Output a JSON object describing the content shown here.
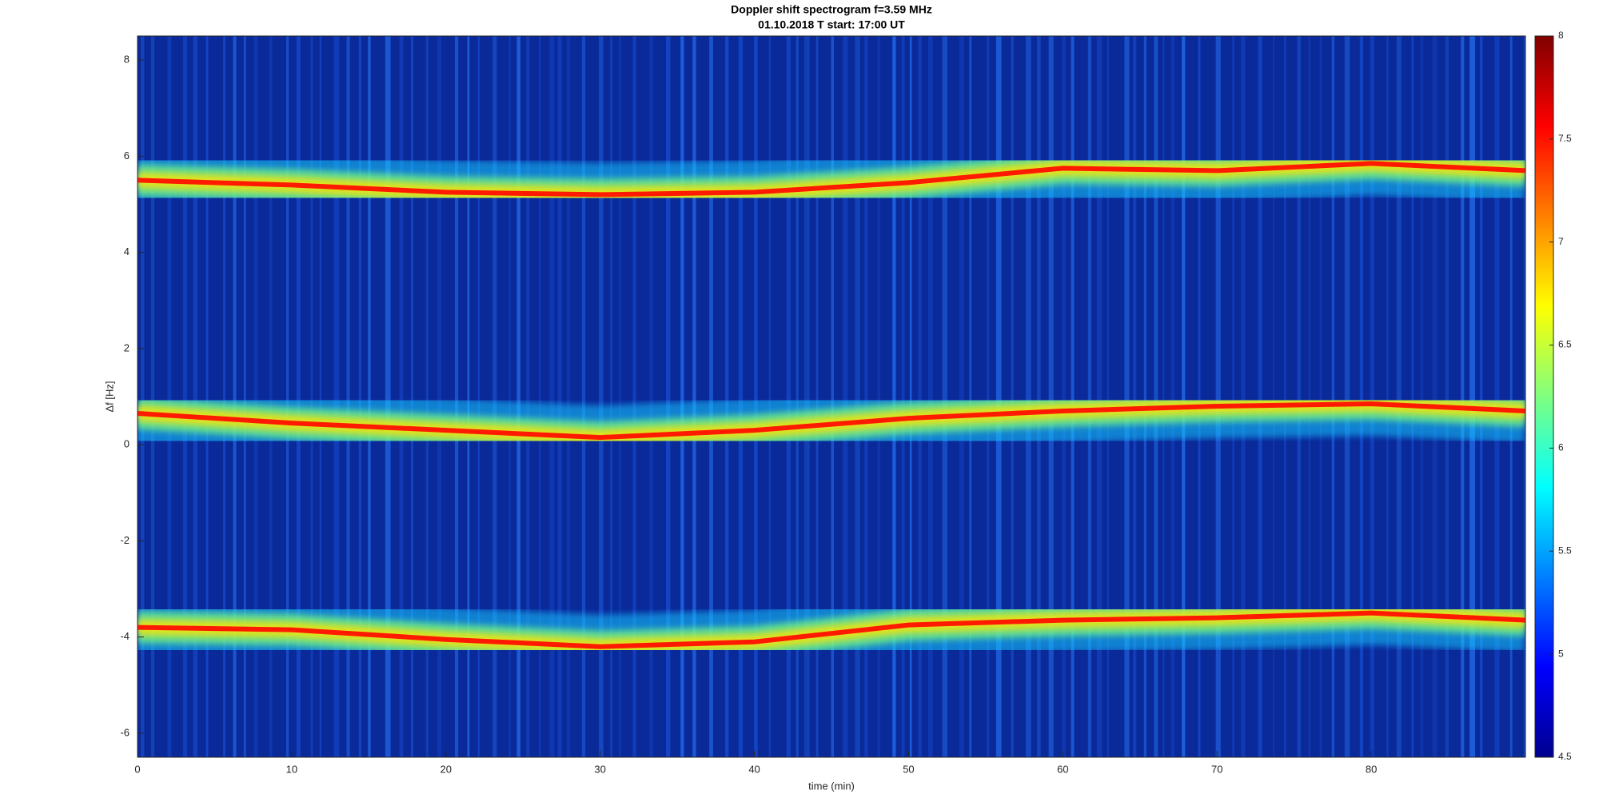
{
  "chart_data": {
    "type": "spectrogram",
    "title": "Doppler shift spectrogram f=3.59 MHz",
    "subtitle": "01.10.2018   T start: 17:00 UT",
    "x_label": "time (min)",
    "y_label": "Δf [Hz]",
    "x": [
      0,
      10,
      20,
      30,
      40,
      50,
      60,
      70,
      80,
      90
    ],
    "series": [
      {
        "color": "#ff1a00",
        "values": [
          5.5,
          5.4,
          5.25,
          5.2,
          5.25,
          5.45,
          5.75,
          5.7,
          5.85,
          5.7
        ]
      },
      {
        "color": "#ff1a00",
        "values": [
          0.65,
          0.45,
          0.3,
          0.15,
          0.3,
          0.55,
          0.7,
          0.8,
          0.85,
          0.7
        ]
      },
      {
        "color": "#ff1a00",
        "values": [
          -3.8,
          -3.85,
          -4.05,
          -4.2,
          -4.1,
          -3.75,
          -3.65,
          -3.6,
          -3.5,
          -3.65
        ]
      }
    ],
    "xlim": [
      0,
      90
    ],
    "xticks": [
      0,
      10,
      20,
      30,
      40,
      50,
      60,
      70,
      80
    ],
    "ylim": [
      -6.5,
      8.5
    ],
    "yticks": [
      -6,
      -4,
      -2,
      0,
      2,
      4,
      6,
      8
    ],
    "background_color": "#0a2a9a",
    "colorbar": {
      "lim": [
        4.5,
        8
      ],
      "ticks": [
        4.5,
        5,
        5.5,
        6,
        6.5,
        7,
        7.5,
        8
      ]
    }
  }
}
